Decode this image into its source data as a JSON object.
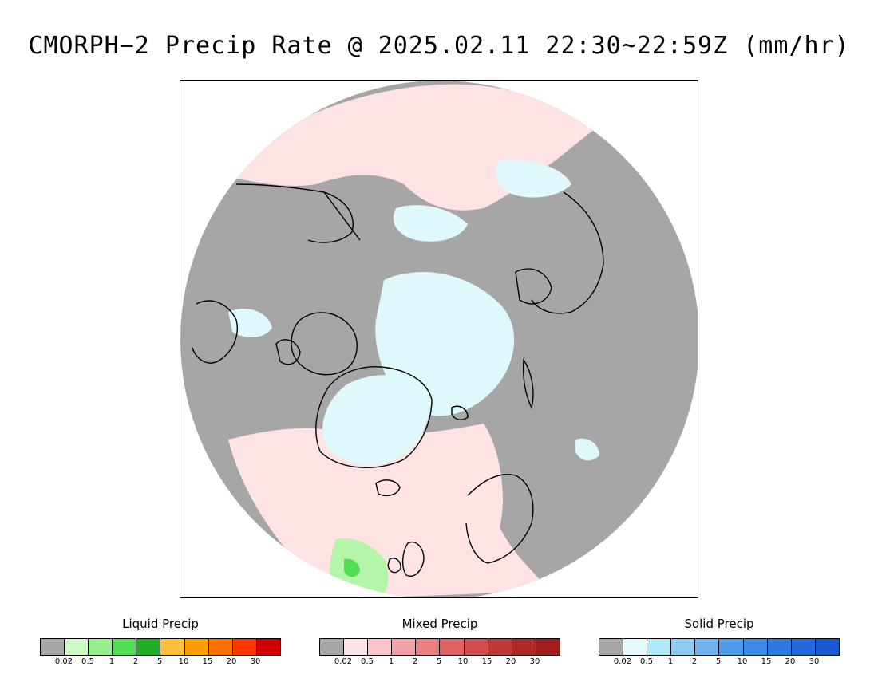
{
  "title": "CMORPH−2 Precip Rate @ 2025.02.11 22:30~22:59Z (mm/hr)",
  "map": {
    "projection": "polar stereographic (north)",
    "colors": {
      "no_precip": "#a6a6a6",
      "mixed_trace": "#fde3e3",
      "solid_trace": "#def8fb",
      "liquid_light": "#b3f5a9",
      "liquid_mid": "#52de52",
      "coastline": "#000000"
    }
  },
  "legends": [
    {
      "title": "Liquid Precip",
      "ticks": [
        "0.02",
        "0.5",
        "1",
        "2",
        "5",
        "10",
        "15",
        "20",
        "30"
      ],
      "colors": [
        "#a6a6a6",
        "#ccfcc4",
        "#98f08c",
        "#52de52",
        "#21ad21",
        "#fcbe3c",
        "#fc9c00",
        "#fc7000",
        "#fc3800",
        "#d00000"
      ]
    },
    {
      "title": "Mixed Precip",
      "ticks": [
        "0.02",
        "0.5",
        "1",
        "2",
        "5",
        "10",
        "15",
        "20",
        "30"
      ],
      "colors": [
        "#a6a6a6",
        "#fde2e6",
        "#fcc4c8",
        "#f2a2a2",
        "#ea8080",
        "#de6262",
        "#d24e4e",
        "#c03838",
        "#b02828",
        "#a01e1e"
      ]
    },
    {
      "title": "Solid Precip",
      "ticks": [
        "0.02",
        "0.5",
        "1",
        "2",
        "5",
        "10",
        "15",
        "20",
        "30"
      ],
      "colors": [
        "#a6a6a6",
        "#e2fcfc",
        "#aeeaf8",
        "#8ecaf4",
        "#72b2f0",
        "#4e9cea",
        "#3c8ae6",
        "#2e78e2",
        "#2468dc",
        "#1a58d2"
      ]
    }
  ]
}
